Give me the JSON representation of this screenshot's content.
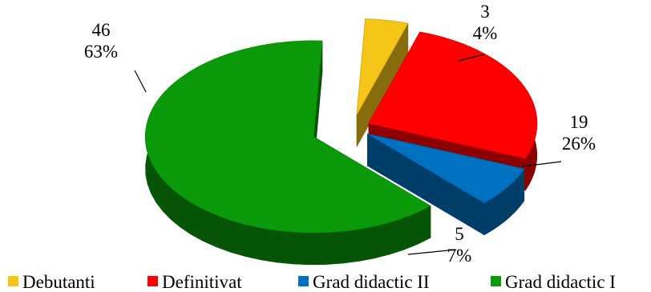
{
  "chart_data": {
    "type": "pie",
    "style": "3d-exploded",
    "legend_position": "bottom",
    "title": "",
    "slices": [
      {
        "name": "Debutanti",
        "value": 3,
        "percent": "4%",
        "color": "#F5C518"
      },
      {
        "name": "Definitivat",
        "value": 19,
        "percent": "26%",
        "color": "#FF0000"
      },
      {
        "name": "Grad didactic II",
        "value": 5,
        "percent": "7%",
        "color": "#0070C0"
      },
      {
        "name": "Grad didactic I",
        "value": 46,
        "percent": "63%",
        "color": "#0A9A0A"
      }
    ]
  }
}
